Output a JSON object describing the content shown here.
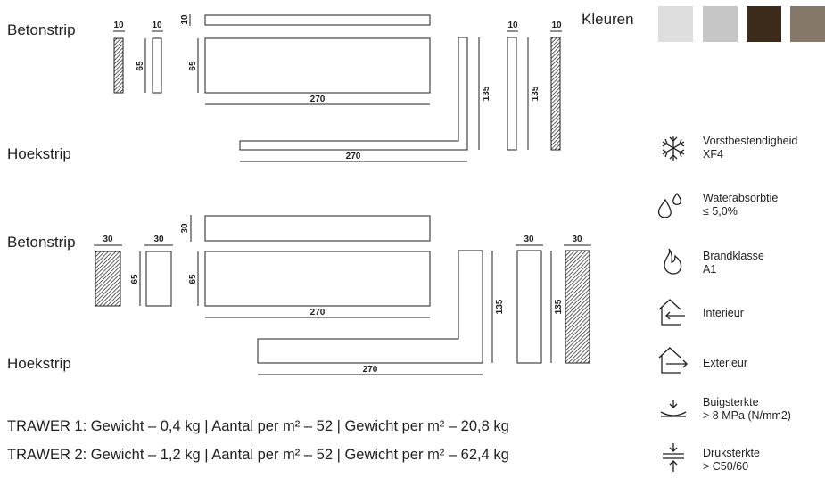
{
  "section1": {
    "label_top": "Betonstrip",
    "label_bottom": "Hoekstrip",
    "dims": {
      "w_small_a": "10",
      "w_small_b": "10",
      "thick_top": "10",
      "h_small_a": "65",
      "h_small_b": "65",
      "length_strip": "270",
      "h_corner_a": "135",
      "w_end_a": "10",
      "h_end_a": "135",
      "w_end_b": "10",
      "length_corner": "270"
    }
  },
  "section2": {
    "label_top": "Betonstrip",
    "label_bottom": "Hoekstrip",
    "dims": {
      "w_small_a": "30",
      "w_small_b": "30",
      "thick_top": "30",
      "h_small_a": "65",
      "h_small_b": "65",
      "length_strip": "270",
      "h_corner_a": "135",
      "w_end_a": "30",
      "h_end_a": "135",
      "w_end_b": "30",
      "length_corner": "270"
    }
  },
  "colors": {
    "label": "Kleuren",
    "swatches": [
      "#dedede",
      "#c6c6c6",
      "#3c2a1a",
      "#85776a"
    ]
  },
  "properties": [
    {
      "icon": "snowflake-icon",
      "line1": "Vorstbestendigheid",
      "line2": "XF4"
    },
    {
      "icon": "water-drops-icon",
      "line1": "Waterabsorbtie",
      "line2": "≤ 5,0%"
    },
    {
      "icon": "flame-icon",
      "line1": "Brandklasse",
      "line2": "A1"
    },
    {
      "icon": "house-interior-icon",
      "line1": "Interieur",
      "line2": ""
    },
    {
      "icon": "house-exterior-icon",
      "line1": "Exterieur",
      "line2": ""
    },
    {
      "icon": "bending-strength-icon",
      "line1": "Buigsterkte",
      "line2": "> 8 MPa (N/mm2)"
    },
    {
      "icon": "compressive-strength-icon",
      "line1": "Druksterkte",
      "line2": "> C50/60"
    }
  ],
  "trawer": [
    "TRAWER 1: Gewicht – 0,4 kg  |  Aantal per m² – 52  |  Gewicht per m² – 20,8 kg",
    "TRAWER 2: Gewicht – 1,2 kg  |  Aantal per m² – 52  |  Gewicht per m² – 62,4 kg"
  ]
}
